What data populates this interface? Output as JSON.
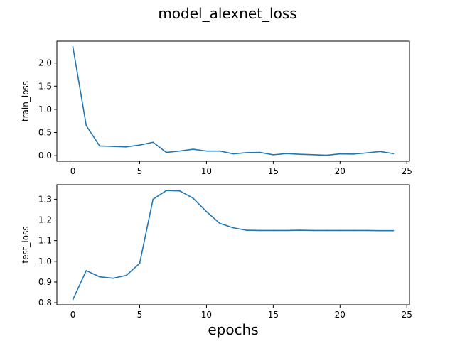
{
  "figure": {
    "title": "model_alexnet_loss",
    "xlabel": "epochs"
  },
  "chart_data": [
    {
      "type": "line",
      "ylabel": "train_loss",
      "xlim": [
        -1.2,
        25.2
      ],
      "ylim": [
        -0.12,
        2.47
      ],
      "xticks": [
        0,
        5,
        10,
        15,
        20,
        25
      ],
      "yticks": [
        0.0,
        0.5,
        1.0,
        1.5,
        2.0
      ],
      "ytick_labels": [
        "0.0",
        "0.5",
        "1.0",
        "1.5",
        "2.0"
      ],
      "color": "#1f77b4",
      "x": [
        0,
        1,
        2,
        3,
        4,
        5,
        6,
        7,
        8,
        9,
        10,
        11,
        12,
        13,
        14,
        15,
        16,
        17,
        18,
        19,
        20,
        21,
        22,
        23,
        24
      ],
      "y": [
        2.35,
        0.65,
        0.21,
        0.2,
        0.19,
        0.23,
        0.29,
        0.07,
        0.1,
        0.14,
        0.1,
        0.1,
        0.04,
        0.065,
        0.07,
        0.02,
        0.045,
        0.03,
        0.02,
        0.01,
        0.04,
        0.035,
        0.06,
        0.09,
        0.045
      ]
    },
    {
      "type": "line",
      "ylabel": "test_loss",
      "xlim": [
        -1.2,
        25.2
      ],
      "ylim": [
        0.79,
        1.37
      ],
      "xticks": [
        0,
        5,
        10,
        15,
        20,
        25
      ],
      "yticks": [
        0.8,
        0.9,
        1.0,
        1.1,
        1.2,
        1.3
      ],
      "ytick_labels": [
        "0.8",
        "0.9",
        "1.0",
        "1.1",
        "1.2",
        "1.3"
      ],
      "color": "#1f77b4",
      "x": [
        0,
        1,
        2,
        3,
        4,
        5,
        6,
        7,
        8,
        9,
        10,
        11,
        12,
        13,
        14,
        15,
        16,
        17,
        18,
        19,
        20,
        21,
        22,
        23,
        24
      ],
      "y": [
        0.815,
        0.955,
        0.925,
        0.918,
        0.932,
        0.99,
        1.3,
        1.342,
        1.34,
        1.305,
        1.24,
        1.183,
        1.162,
        1.15,
        1.149,
        1.149,
        1.149,
        1.15,
        1.149,
        1.149,
        1.149,
        1.149,
        1.149,
        1.148,
        1.148
      ]
    }
  ]
}
